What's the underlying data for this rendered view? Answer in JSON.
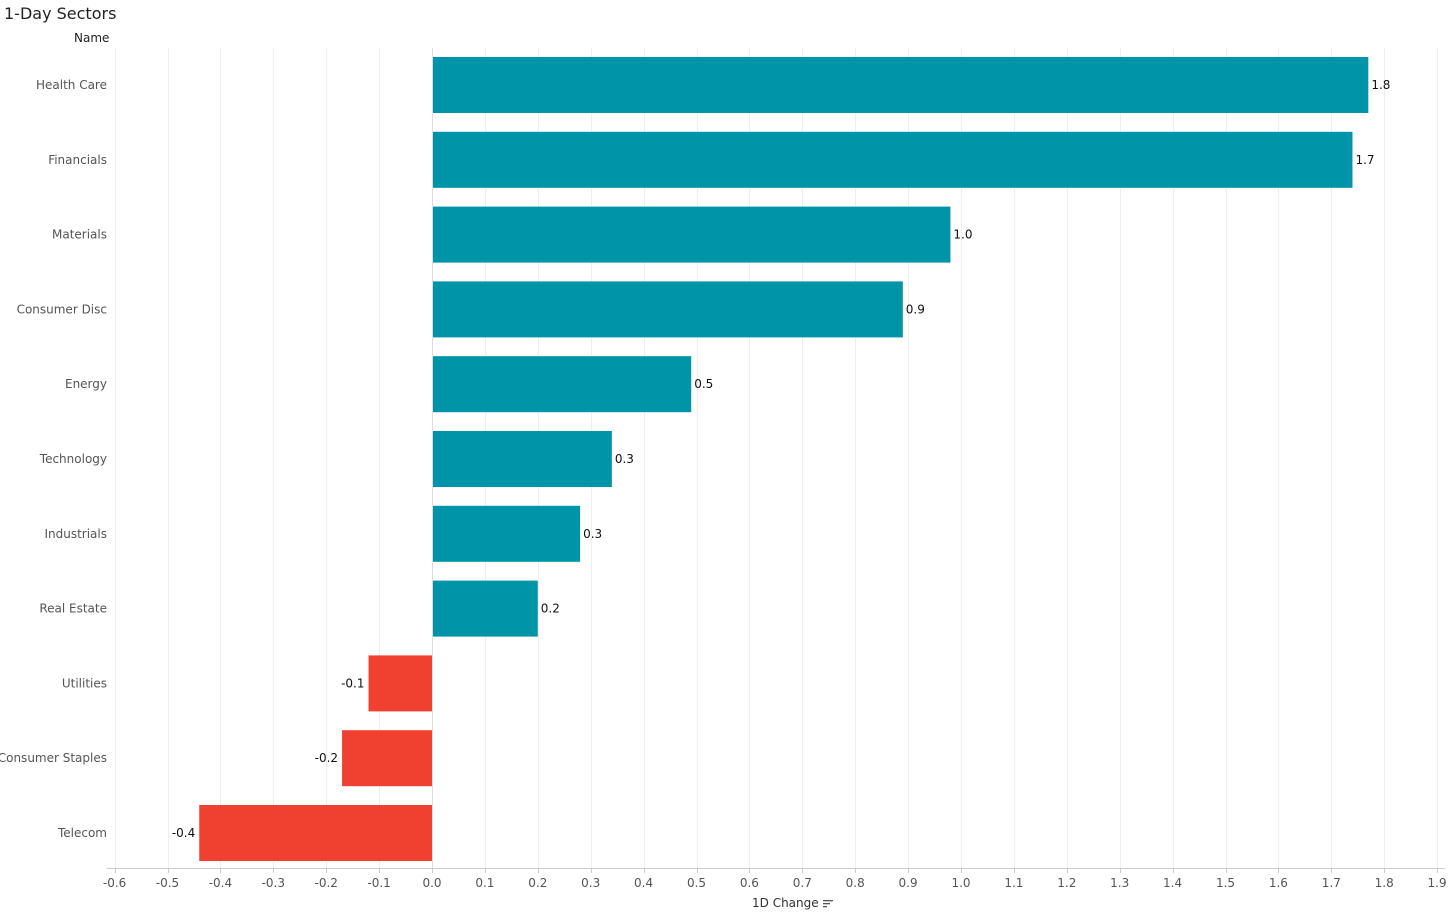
{
  "chart_data": {
    "type": "bar",
    "orientation": "horizontal",
    "title": "1-Day Sectors",
    "ylabel": "Name",
    "xlabel": "1D Change",
    "xlabel_icon": "sort-descending-icon",
    "categories": [
      "Health Care",
      "Financials",
      "Materials",
      "Consumer Disc",
      "Energy",
      "Technology",
      "Industrials",
      "Real Estate",
      "Utilities",
      "Consumer Staples",
      "Telecom"
    ],
    "values": [
      1.77,
      1.74,
      0.98,
      0.89,
      0.49,
      0.34,
      0.28,
      0.2,
      -0.12,
      -0.17,
      -0.44
    ],
    "value_labels": [
      "1.8",
      "1.7",
      "1.0",
      "0.9",
      "0.5",
      "0.3",
      "0.3",
      "0.2",
      "-0.1",
      "-0.2",
      "-0.4"
    ],
    "xlim": [
      -0.6,
      1.9
    ],
    "xticks": [
      -0.6,
      -0.5,
      -0.4,
      -0.3,
      -0.2,
      -0.1,
      0.0,
      0.1,
      0.2,
      0.3,
      0.4,
      0.5,
      0.6,
      0.7,
      0.8,
      0.9,
      1.0,
      1.1,
      1.2,
      1.3,
      1.4,
      1.5,
      1.6,
      1.7,
      1.8,
      1.9
    ],
    "xtick_labels": [
      "-0.6",
      "-0.5",
      "-0.4",
      "-0.3",
      "-0.2",
      "-0.1",
      "0.0",
      "0.1",
      "0.2",
      "0.3",
      "0.4",
      "0.5",
      "0.6",
      "0.7",
      "0.8",
      "0.9",
      "1.0",
      "1.1",
      "1.2",
      "1.3",
      "1.4",
      "1.5",
      "1.6",
      "1.7",
      "1.8",
      "1.9"
    ],
    "grid": true,
    "colors": {
      "positive": "#0094a8",
      "negative": "#f04030",
      "gridline": "#eeeeee",
      "axis": "#cccccc",
      "category_text": "#555555",
      "tick_text": "#555555",
      "value_text": "#111111"
    }
  }
}
